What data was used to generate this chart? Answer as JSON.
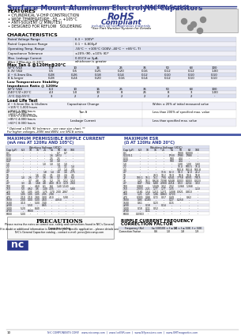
{
  "title_main": "Surface Mount Aluminum Electrolytic Capacitors",
  "title_series": "NACEW Series",
  "bg_color": "#ffffff",
  "header_color": "#2d3a8c",
  "features": [
    "CYLINDRICAL V-CHIP CONSTRUCTION",
    "WIDE TEMPERATURE: -55 ~ +105°C",
    "ANTI-SOLVENT (2 MINUTES)",
    "DESIGNED FOR REFLOW   SOLDERING"
  ],
  "char_rows": [
    [
      "Rated Voltage Range",
      "6.3 ~ 100V*"
    ],
    [
      "Rated Capacitance Range",
      "0.1 ~ 6,800μF"
    ],
    [
      "Operating Temp. Range",
      "-55°C ~ +105°C (100V: -40°C ~ +85°C, T)"
    ],
    [
      "Capacitance Tolerance",
      "±20% (M), ±10% (K)*"
    ],
    [
      "Max. Leakage Current\nAfter 2 Minutes @ 20°C",
      "0.01CV or 3μA,\nwhichever is greater"
    ]
  ],
  "ripple_cap_data": [
    [
      "0.1",
      "-",
      "-",
      "-",
      "-",
      "-",
      "0.7",
      "0.7",
      "-"
    ],
    [
      "0.22",
      "-",
      "-",
      "-",
      "-",
      "1.6",
      "1.6(1)",
      "-",
      "-"
    ],
    [
      "0.33",
      "-",
      "-",
      "-",
      "-",
      "2.5",
      "2.5",
      "-",
      "-"
    ],
    [
      "0.47",
      "-",
      "-",
      "-",
      "-",
      "3.0",
      "3.0",
      "-",
      "-"
    ],
    [
      "1.0",
      "-",
      "-",
      "-",
      "1.0",
      "1.0",
      "1.0",
      "1.0",
      "-"
    ],
    [
      "2.2",
      "-",
      "-",
      "-",
      "-",
      "-",
      "1.1",
      "1.1",
      "1.4"
    ],
    [
      "3.3",
      "-",
      "-",
      "-",
      "-",
      "-",
      "1.3",
      "1.4",
      "2.0"
    ],
    [
      "4.7",
      "-",
      "-",
      "-",
      "1.8",
      "1.4",
      "1.6",
      "1.6",
      "2.75"
    ],
    [
      "10",
      "-",
      "-",
      "1.6",
      "2.0",
      "2.1",
      "2.4",
      "2.4",
      "3.5"
    ],
    [
      "22",
      "1.0",
      "2.6",
      "2.7",
      "3.6",
      "3.6",
      "3.2",
      "4.6",
      "6.4"
    ],
    [
      "33",
      "-",
      "3.7",
      "4.8",
      "1.6",
      "5.2",
      "7.0",
      "1.12",
      "1.53"
    ],
    [
      "4.7",
      "3.3",
      "4.1",
      "1.68",
      "4.8",
      "4.60",
      "10.0",
      "1.19",
      "2.60"
    ],
    [
      "100",
      "3.0",
      "-",
      "4.60",
      "6.1",
      "8.4",
      "1.40",
      "1.140",
      "-"
    ],
    [
      "150",
      "5.0",
      "4.62",
      "4.6",
      "1.40",
      "1.55",
      "-",
      "-",
      "5.80"
    ],
    [
      "220",
      "5.0",
      "1.05",
      "1.05",
      "1.75",
      "1.70",
      "2.00",
      "2867",
      "-"
    ],
    [
      "330",
      "1.05",
      "1.05",
      "1.05",
      "2.05",
      "2.90",
      "-",
      "-",
      "-"
    ],
    [
      "470",
      "2.10",
      "2.10",
      "2.80",
      "3.00",
      "4.10",
      "-",
      "5.90",
      "-"
    ],
    [
      "1000",
      "2.00",
      "3.00",
      "5.00",
      "4.60",
      "-",
      "4.050",
      "-",
      "-"
    ],
    [
      "1500",
      "3.10",
      "-",
      "5.00",
      "7.40",
      "-",
      "-",
      "-",
      "-"
    ],
    [
      "2200",
      "-",
      "5.50",
      "-",
      "8.65",
      "-",
      "-",
      "-",
      "-"
    ],
    [
      "3300",
      "5.20",
      "-",
      "8.40",
      "-",
      "-",
      "-",
      "-",
      "-"
    ],
    [
      "4700",
      "-",
      "6800",
      "-",
      "-",
      "-",
      "-",
      "-",
      "-"
    ],
    [
      "6800",
      "5.00",
      "-",
      "-",
      "-",
      "-",
      "-",
      "-",
      "-"
    ]
  ],
  "esr_cap_data": [
    [
      "0.1",
      "-",
      "-",
      "-",
      "-",
      "-",
      "1000",
      "(1000)",
      "-"
    ],
    [
      "0.22/0.1",
      "-",
      "-",
      "-",
      "-",
      "(750)",
      "(788)",
      "(788)",
      "-"
    ],
    [
      "0.33",
      "-",
      "-",
      "-",
      "-",
      "500",
      "404",
      "-",
      "-"
    ],
    [
      "0.47",
      "-",
      "-",
      "-",
      "-",
      "500",
      "404",
      "-",
      "-"
    ],
    [
      "1.0",
      "-",
      "-",
      "-",
      "-",
      "-",
      "1.00",
      "1.00",
      "1.60"
    ],
    [
      "2.2",
      "-",
      "-",
      "-",
      "-",
      "-",
      "75.4",
      "500.5",
      "75.4"
    ],
    [
      "3.3",
      "-",
      "-",
      "-",
      "-",
      "-",
      "500.8",
      "500.8",
      "500.8"
    ],
    [
      "4.7",
      "-",
      "-",
      "-",
      "13.6",
      "62.3",
      "59.3",
      "12.0",
      "20.2"
    ],
    [
      "10",
      "-",
      "-",
      "29.5",
      "19.2",
      "19.9",
      "18.6",
      "19.6",
      "18.8"
    ],
    [
      "22",
      "100.1",
      "10.1",
      "14.1",
      "7.94",
      "6.041",
      "7.758",
      "8.001",
      "7.815"
    ],
    [
      "33",
      "1.21",
      "10.1",
      "8.624",
      "7.098",
      "6.048",
      "0.003",
      "8.003",
      "0.023"
    ],
    [
      "4.7",
      "8.47",
      "7.04",
      "6.80",
      "4.900",
      "4.214",
      "0.53",
      "4.214",
      "3.53"
    ],
    [
      "100",
      "3.960",
      "-",
      "1.049",
      "3.52",
      "2.52",
      "1.368",
      "1.368",
      "-"
    ],
    [
      "150",
      "2.055",
      "2.21",
      "1.77",
      "1.77",
      "1.55",
      "-",
      "-",
      "1.10"
    ],
    [
      "220",
      "1.181",
      "1.54",
      "1.211",
      "1.271",
      "1.008",
      "0.921",
      "0.810",
      "-"
    ],
    [
      "330",
      "1.21",
      "1.21",
      "1.06",
      "0.863",
      "0.723",
      "-",
      "-",
      "-"
    ],
    [
      "470",
      "0.991",
      "0.88",
      "0.72",
      "0.57",
      "0.49",
      "-",
      "0.62",
      "-"
    ],
    [
      "1000",
      "0.85",
      "0.183",
      "-",
      "-",
      "0.27",
      "0.250",
      "-",
      "-"
    ],
    [
      "1500",
      "0.61",
      "-",
      "0.23",
      "-",
      "0.15",
      "-",
      "-",
      "-"
    ],
    [
      "2200",
      "-",
      "0.18",
      "-",
      "0.14",
      "-",
      "-",
      "-",
      "-"
    ],
    [
      "3300",
      "0.18",
      "0.11",
      "0.52",
      "-",
      "-",
      "-",
      "-",
      "-"
    ],
    [
      "4700",
      "-",
      "0.11",
      "-",
      "-",
      "-",
      "-",
      "-",
      "-"
    ],
    [
      "6800",
      "0.0903",
      "-",
      "-",
      "-",
      "-",
      "-",
      "-",
      "-"
    ]
  ],
  "freq_headers": [
    "Frequency (Hz)",
    "f≤ 100",
    "100 < f ≤ 1K",
    "1K < f ≤ 50K",
    "f > 50K"
  ],
  "freq_row": [
    "Correction Factor",
    "0.6",
    "1.0",
    "1.8",
    "1.9"
  ],
  "footer_text": "NIC COMPONENTS CORP.   www.niccomp.com  |  www.lceESR.com  |  www.NFpassives.com  |  www.SMTmagnetics.com"
}
